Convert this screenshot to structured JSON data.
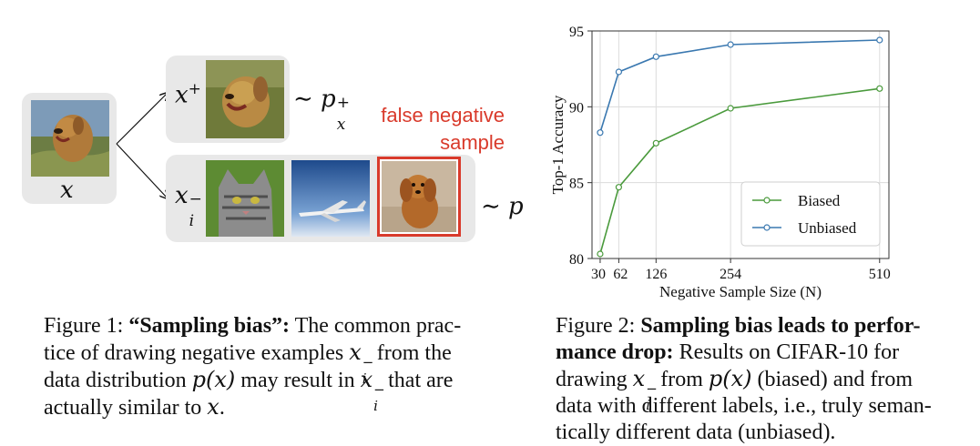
{
  "figure1": {
    "anchor_label": "x",
    "positive_label_base": "x",
    "positive_label_sup": "+",
    "positive_dist_symbol": "∼ p",
    "positive_dist_sub": "x",
    "positive_dist_sup": "+",
    "negative_label_base": "x",
    "negative_label_sub": "i",
    "negative_label_sup": "−",
    "negative_dist": "∼ p",
    "false_negative_line1": "false negative",
    "false_negative_line2": "sample",
    "highlight_color": "#d93a2b",
    "caption_label": "Figure 1: ",
    "caption_bold": "“Sampling bias”:",
    "caption_text_a": " The common prac-",
    "caption_text_b": "tice of drawing negative examples ",
    "caption_text_c": " from the",
    "caption_text_d": "data distribution ",
    "caption_px": "p(x)",
    "caption_text_e": " may result in ",
    "caption_text_f": " that are",
    "caption_text_g": "actually similar to ",
    "caption_x": "x",
    "caption_end": "."
  },
  "figure2": {
    "caption_label": "Figure 2: ",
    "caption_bold_1": "Sampling bias leads to perfor-",
    "caption_bold_2": "mance drop:",
    "caption_text_a": " Results on CIFAR-10 for",
    "caption_text_b": "drawing ",
    "caption_text_c": " from ",
    "caption_px": "p(x)",
    "caption_text_d": " (biased) and from",
    "caption_text_e": "data with different labels, i.e., truly seman-",
    "caption_text_f": "tically different data (unbiased)."
  },
  "chart_data": {
    "type": "line",
    "xlabel": "Negative Sample Size (N)",
    "ylabel": "Top-1 Accuracy",
    "x": [
      30,
      62,
      126,
      254,
      510
    ],
    "xticks": [
      "30",
      "62",
      "126",
      "254",
      "510"
    ],
    "yticks": [
      "80",
      "85",
      "90",
      "95"
    ],
    "ylim": [
      80,
      95
    ],
    "xlim": [
      16,
      526
    ],
    "grid": true,
    "legend_position": "bottom-right",
    "series": [
      {
        "name": "Biased",
        "color": "#4a9a3c",
        "values": [
          80.3,
          84.7,
          87.6,
          89.9,
          91.2
        ]
      },
      {
        "name": "Unbiased",
        "color": "#3a78b0",
        "values": [
          88.3,
          92.3,
          93.3,
          94.1,
          94.4
        ]
      }
    ]
  }
}
